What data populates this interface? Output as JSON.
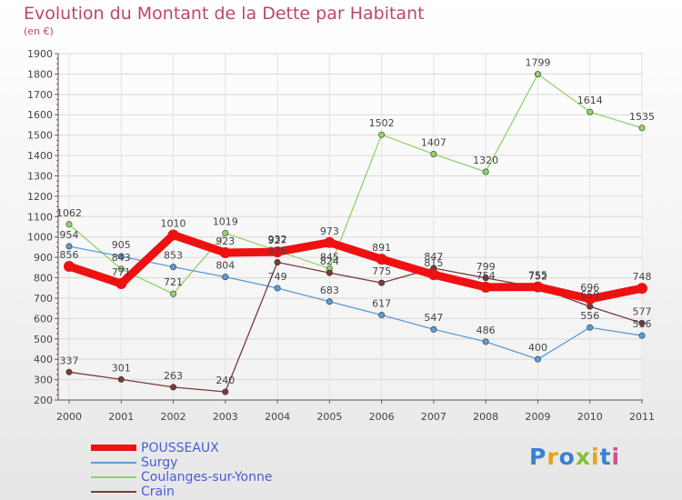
{
  "title": "Evolution du Montant de la Dette par Habitant",
  "unit": "(en €)",
  "logo": {
    "text": "Proxiti",
    "letter_colors": [
      "#3a7fd0",
      "#e8a21a",
      "#3a7fd0",
      "#7fc13a",
      "#e8a21a",
      "#3a7fd0",
      "#d44f8a"
    ]
  },
  "chart_data": {
    "type": "line",
    "title": "Evolution du Montant de la Dette par Habitant",
    "ylabel": "(en €)",
    "xlabel": "",
    "categories": [
      "2000",
      "2001",
      "2002",
      "2003",
      "2004",
      "2005",
      "2006",
      "2007",
      "2008",
      "2009",
      "2010",
      "2011"
    ],
    "ylim": [
      200,
      1900
    ],
    "yticks": [
      "200",
      "300",
      "400",
      "500",
      "600",
      "700",
      "800",
      "900",
      "1000",
      "1100",
      "1200",
      "1300",
      "1400",
      "1500",
      "1600",
      "1700",
      "1800",
      "1900"
    ],
    "grid": true,
    "legend_position": "bottom-left",
    "series": [
      {
        "name": "POUSSEAUX",
        "color": "#ee1111",
        "values": [
          856,
          771,
          1010,
          923,
          927,
          973,
          891,
          815,
          754,
          755,
          696,
          748
        ],
        "labels": [
          "856",
          "771",
          "1010",
          "923",
          "927",
          "973",
          "891",
          "815",
          "754",
          "755",
          "696",
          "748"
        ]
      },
      {
        "name": "Surgy",
        "color": "#5d9bd6",
        "values": [
          954,
          905,
          853,
          804,
          749,
          683,
          617,
          547,
          486,
          400,
          556,
          516
        ],
        "labels": [
          "954",
          "905",
          "853",
          "804",
          "749",
          "683",
          "617",
          "547",
          "486",
          "400",
          "556",
          "516"
        ]
      },
      {
        "name": "Coulanges-sur-Yonne",
        "color": "#92d26a",
        "values": [
          1062,
          843,
          721,
          1019,
          932,
          845,
          1502,
          1407,
          1320,
          1799,
          1614,
          1535
        ],
        "labels": [
          "1062",
          "843",
          "721",
          "1019",
          "932",
          "845",
          "1502",
          "1407",
          "1320",
          "1799",
          "1614",
          "1535"
        ]
      },
      {
        "name": "Crain",
        "color": "#7b3a3a",
        "values": [
          337,
          301,
          263,
          240,
          876,
          824,
          775,
          847,
          799,
          752,
          659,
          577
        ],
        "labels": [
          "337",
          "301",
          "263",
          "240",
          "876",
          "824",
          "775",
          "847",
          "799",
          "752",
          "659",
          "577"
        ]
      }
    ]
  }
}
